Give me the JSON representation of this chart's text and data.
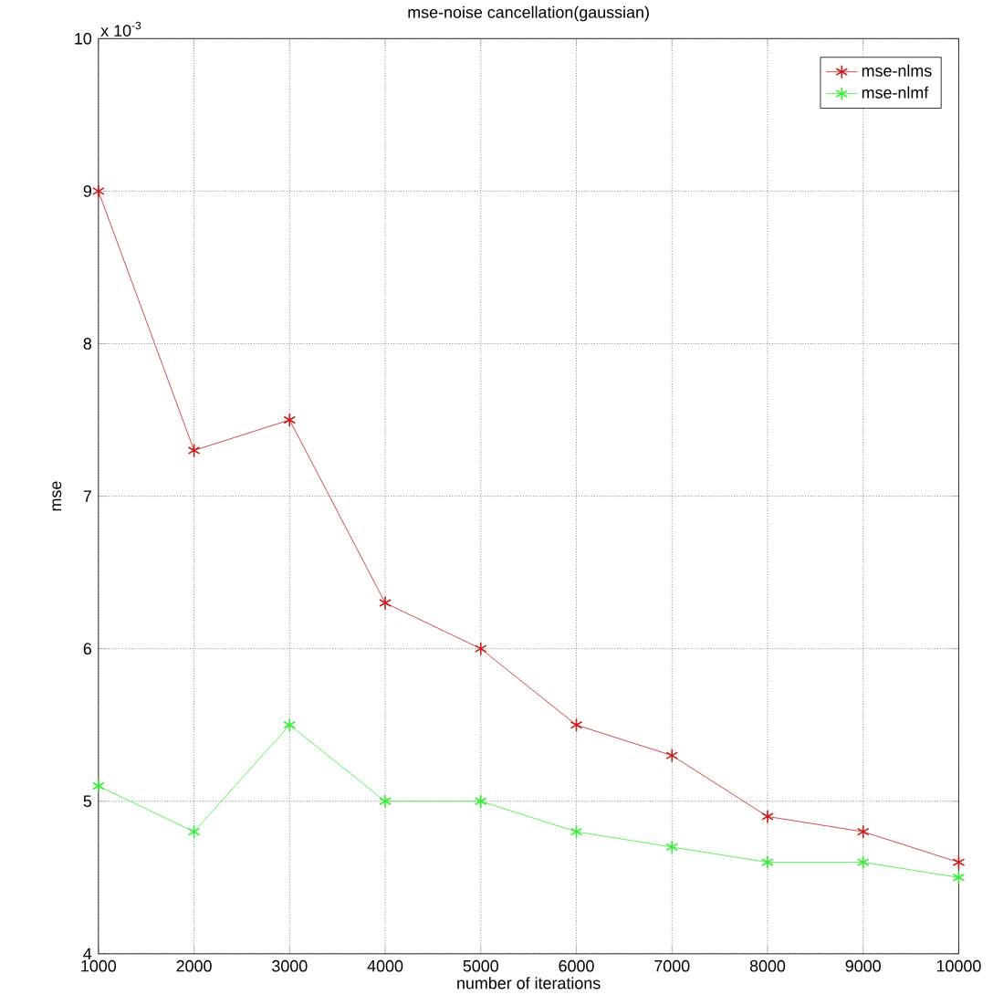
{
  "chart_data": {
    "type": "line",
    "title": "mse-noise cancellation(gaussian)",
    "xlabel": "number of iterations",
    "ylabel": "mse",
    "x": [
      1000,
      2000,
      3000,
      4000,
      5000,
      6000,
      7000,
      8000,
      9000,
      10000
    ],
    "series": [
      {
        "name": "mse-nlms",
        "color": "#cc1a1a",
        "values": [
          9.0,
          7.3,
          7.5,
          6.3,
          6.0,
          5.5,
          5.3,
          4.9,
          4.8,
          4.6
        ]
      },
      {
        "name": "mse-nlmf",
        "color": "#33ee33",
        "values": [
          5.1,
          4.8,
          5.5,
          5.0,
          5.0,
          4.8,
          4.7,
          4.6,
          4.6,
          4.5
        ]
      }
    ],
    "xlim": [
      1000,
      10000
    ],
    "xticks": [
      1000,
      2000,
      3000,
      4000,
      5000,
      6000,
      7000,
      8000,
      9000,
      10000
    ],
    "ylim": [
      4,
      10
    ],
    "yticks": [
      4,
      5,
      6,
      7,
      8,
      9,
      10
    ],
    "annotations": [
      "x 10$^{-3}$"
    ],
    "grid": true,
    "legend": "top right",
    "marker": "cross",
    "line_style": "solid"
  }
}
